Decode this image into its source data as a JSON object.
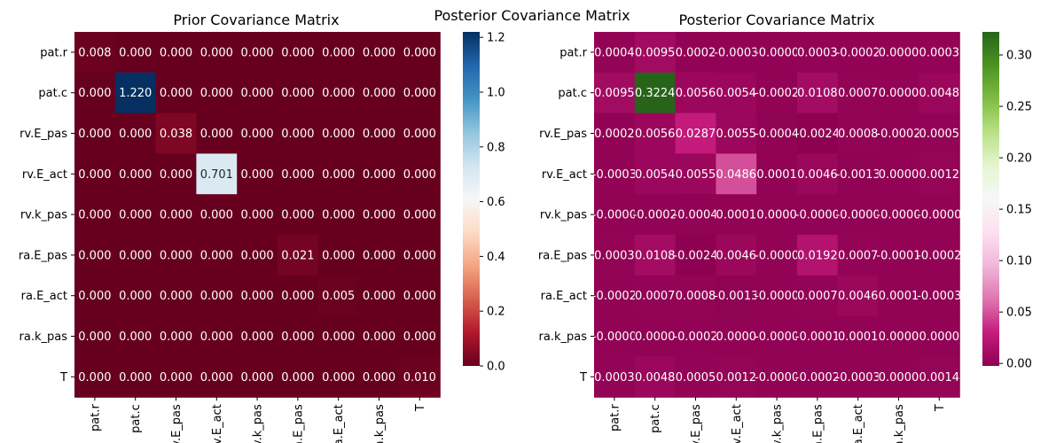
{
  "figure": {
    "suptitle": "Posterior Covariance Matrix"
  },
  "chart_data": [
    {
      "type": "heatmap",
      "title": "Prior Covariance Matrix",
      "row_labels": [
        "pat.r",
        "pat.c",
        "rv.E_pas",
        "rv.E_act",
        "rv.k_pas",
        "ra.E_pas",
        "ra.E_act",
        "ra.k_pas",
        "T"
      ],
      "col_labels": [
        "pat.r",
        "pat.c",
        "rv.E_pas",
        "rv.E_act",
        "rv.k_pas",
        "ra.E_pas",
        "ra.E_act",
        "ra.k_pas",
        "T"
      ],
      "values": [
        [
          0.008,
          0.0,
          0.0,
          0.0,
          0.0,
          0.0,
          0.0,
          0.0,
          0.0
        ],
        [
          0.0,
          1.22,
          0.0,
          0.0,
          0.0,
          0.0,
          0.0,
          0.0,
          0.0
        ],
        [
          0.0,
          0.0,
          0.038,
          0.0,
          0.0,
          0.0,
          0.0,
          0.0,
          0.0
        ],
        [
          0.0,
          0.0,
          0.0,
          0.701,
          0.0,
          0.0,
          0.0,
          0.0,
          0.0
        ],
        [
          0.0,
          0.0,
          0.0,
          0.0,
          0.0,
          0.0,
          0.0,
          0.0,
          0.0
        ],
        [
          0.0,
          0.0,
          0.0,
          0.0,
          0.0,
          0.021,
          0.0,
          0.0,
          0.0
        ],
        [
          0.0,
          0.0,
          0.0,
          0.0,
          0.0,
          0.0,
          0.005,
          0.0,
          0.0
        ],
        [
          0.0,
          0.0,
          0.0,
          0.0,
          0.0,
          0.0,
          0.0,
          0.0,
          0.0
        ],
        [
          0.0,
          0.0,
          0.0,
          0.0,
          0.0,
          0.0,
          0.0,
          0.0,
          0.01
        ]
      ],
      "cell_labels": [
        [
          "0.008",
          "0.000",
          "0.000",
          "0.000",
          "0.000",
          "0.000",
          "0.000",
          "0.000",
          "0.000"
        ],
        [
          "0.000",
          "1.220",
          "0.000",
          "0.000",
          "0.000",
          "0.000",
          "0.000",
          "0.000",
          "0.000"
        ],
        [
          "0.000",
          "0.000",
          "0.038",
          "0.000",
          "0.000",
          "0.000",
          "0.000",
          "0.000",
          "0.000"
        ],
        [
          "0.000",
          "0.000",
          "0.000",
          "0.701",
          "0.000",
          "0.000",
          "0.000",
          "0.000",
          "0.000"
        ],
        [
          "0.000",
          "0.000",
          "0.000",
          "0.000",
          "0.000",
          "0.000",
          "0.000",
          "0.000",
          "0.000"
        ],
        [
          "0.000",
          "0.000",
          "0.000",
          "0.000",
          "0.000",
          "0.021",
          "0.000",
          "0.000",
          "0.000"
        ],
        [
          "0.000",
          "0.000",
          "0.000",
          "0.000",
          "0.000",
          "0.000",
          "0.005",
          "0.000",
          "0.000"
        ],
        [
          "0.000",
          "0.000",
          "0.000",
          "0.000",
          "0.000",
          "0.000",
          "0.000",
          "0.000",
          "0.000"
        ],
        [
          "0.000",
          "0.000",
          "0.000",
          "0.000",
          "0.000",
          "0.000",
          "0.000",
          "0.000",
          "0.010"
        ]
      ],
      "colormap": "RdBu",
      "colormap_stops": [
        "#67001f",
        "#b2182b",
        "#d6604d",
        "#f4a582",
        "#fddbc7",
        "#f7f7f7",
        "#d1e5f0",
        "#92c5de",
        "#4393c3",
        "#2166ac",
        "#053061"
      ],
      "vmin": 0,
      "vmax": 1.22,
      "colorbar_ticks": [
        0.0,
        0.2,
        0.4,
        0.6,
        0.8,
        1.0,
        1.2
      ],
      "colorbar_tick_labels": [
        "0.0",
        "0.2",
        "0.4",
        "0.6",
        "0.8",
        "1.0",
        "1.2"
      ]
    },
    {
      "type": "heatmap",
      "title": "Posterior Covariance Matrix",
      "row_labels": [
        "pat.r",
        "pat.c",
        "rv.E_pas",
        "rv.E_act",
        "rv.k_pas",
        "ra.E_pas",
        "ra.E_act",
        "ra.k_pas",
        "T"
      ],
      "col_labels": [
        "pat.r",
        "pat.c",
        "rv.E_pas",
        "rv.E_act",
        "rv.k_pas",
        "ra.E_pas",
        "ra.E_act",
        "ra.k_pas",
        "T"
      ],
      "values": [
        [
          0.0004,
          0.0095,
          0.0002,
          -0.0003,
          -0.0,
          0.0003,
          -0.0002,
          0.0,
          0.0003
        ],
        [
          0.0095,
          0.3224,
          0.0056,
          0.0054,
          -0.0002,
          0.0108,
          0.0007,
          0.0,
          0.0048
        ],
        [
          0.0002,
          0.0056,
          0.0287,
          0.0055,
          -0.0004,
          -0.0024,
          0.0008,
          -0.0002,
          0.0005
        ],
        [
          -0.0003,
          0.0054,
          0.0055,
          0.0486,
          0.0001,
          0.0046,
          -0.0013,
          0.0,
          0.0012
        ],
        [
          -0.0,
          -0.0002,
          -0.0004,
          0.0001,
          0.0,
          -0.0,
          -0.0,
          -0.0,
          -0.0
        ],
        [
          0.0003,
          0.0108,
          -0.0024,
          0.0046,
          -0.0,
          0.0192,
          0.0007,
          -0.0001,
          -0.0002
        ],
        [
          -0.0002,
          0.0007,
          0.0008,
          -0.0013,
          -0.0,
          0.0007,
          0.0046,
          0.0001,
          -0.0003
        ],
        [
          -0.0,
          0.0,
          -0.0002,
          0.0,
          -0.0,
          -0.0001,
          0.0001,
          0.0,
          0.0
        ],
        [
          0.0003,
          0.0048,
          0.0005,
          0.0012,
          -0.0,
          -0.0002,
          -0.0003,
          0.0,
          0.0014
        ]
      ],
      "cell_labels": [
        [
          "0.0004",
          "0.0095",
          "0.0002",
          "-0.0003",
          "-0.0000",
          "0.0003",
          "-0.0002",
          "0.0000",
          "0.0003"
        ],
        [
          "0.0095",
          "0.3224",
          "0.0056",
          "0.0054",
          "-0.0002",
          "0.0108",
          "0.0007",
          "0.0000",
          "0.0048"
        ],
        [
          "0.0002",
          "0.0056",
          "0.0287",
          "0.0055",
          "-0.0004",
          "-0.0024",
          "0.0008",
          "-0.0002",
          "0.0005"
        ],
        [
          "-0.0003",
          "0.0054",
          "0.0055",
          "0.0486",
          "0.0001",
          "0.0046",
          "-0.0013",
          "0.0000",
          "0.0012"
        ],
        [
          "-0.0000",
          "-0.0002",
          "-0.0004",
          "0.0001",
          "0.0000",
          "-0.0000",
          "-0.0000",
          "-0.0000",
          "-0.0000"
        ],
        [
          "0.0003",
          "0.0108",
          "-0.0024",
          "0.0046",
          "-0.0000",
          "0.0192",
          "0.0007",
          "-0.0001",
          "-0.0002"
        ],
        [
          "-0.0002",
          "0.0007",
          "0.0008",
          "-0.0013",
          "-0.0000",
          "0.0007",
          "0.0046",
          "0.0001",
          "-0.0003"
        ],
        [
          "-0.0000",
          "0.0000",
          "-0.0002",
          "0.0000",
          "-0.0000",
          "-0.0001",
          "0.0001",
          "0.0000",
          "0.0000"
        ],
        [
          "0.0003",
          "0.0048",
          "0.0005",
          "0.0012",
          "-0.0000",
          "-0.0002",
          "-0.0003",
          "0.0000",
          "0.0014"
        ]
      ],
      "colormap": "PiYG",
      "colormap_stops": [
        "#8e0152",
        "#c51b7d",
        "#de77ae",
        "#f1b6da",
        "#fde0ef",
        "#f7f7f7",
        "#e6f5d0",
        "#b8e186",
        "#7fbc41",
        "#4d9221",
        "#276419"
      ],
      "vmin": -0.0024,
      "vmax": 0.3224,
      "colorbar_ticks": [
        0.0,
        0.05,
        0.1,
        0.15,
        0.2,
        0.25,
        0.3
      ],
      "colorbar_tick_labels": [
        "0.00",
        "0.05",
        "0.10",
        "0.15",
        "0.20",
        "0.25",
        "0.30"
      ]
    }
  ]
}
